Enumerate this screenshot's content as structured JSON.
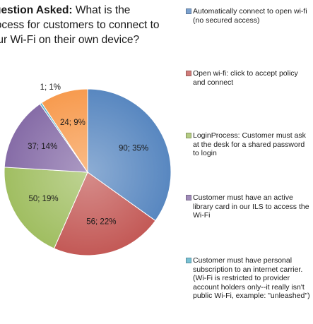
{
  "question": {
    "label": "Question Asked:",
    "text": " What is the process for customers to connect to your Wi-Fi on their own device?"
  },
  "chart_data": {
    "type": "pie",
    "slices": [
      {
        "label": "Automatically connect to open wi-fi (no secured access)",
        "value": 90,
        "percent": 35,
        "data_label": "90; 35%",
        "color": "#4f81bd"
      },
      {
        "label": "Open wi-fi: click to accept policy and connect",
        "value": 56,
        "percent": 22,
        "data_label": "56; 22%",
        "color": "#c0504d"
      },
      {
        "label": "LoginProcess: Customer must ask at the desk for a shared password to login",
        "value": 50,
        "percent": 19,
        "data_label": "50; 19%",
        "color": "#9bbb59"
      },
      {
        "label": "Customer must have an active library card in our ILS to access the Wi-Fi",
        "value": 37,
        "percent": 14,
        "data_label": "37; 14%",
        "color": "#8064a2"
      },
      {
        "label": "Customer must have personal subscription to an internet carrier.  (Wi-Fi is restricted to provider account holders only--it really isn't public Wi-Fi, example: \"unleashed\")",
        "value": 1,
        "percent": 1,
        "data_label": "1; 1%",
        "color": "#4bacc6"
      },
      {
        "label": "",
        "value": 24,
        "percent": 9,
        "data_label": "24; 9%",
        "color": "#f79646"
      }
    ],
    "legend_position": "right"
  }
}
